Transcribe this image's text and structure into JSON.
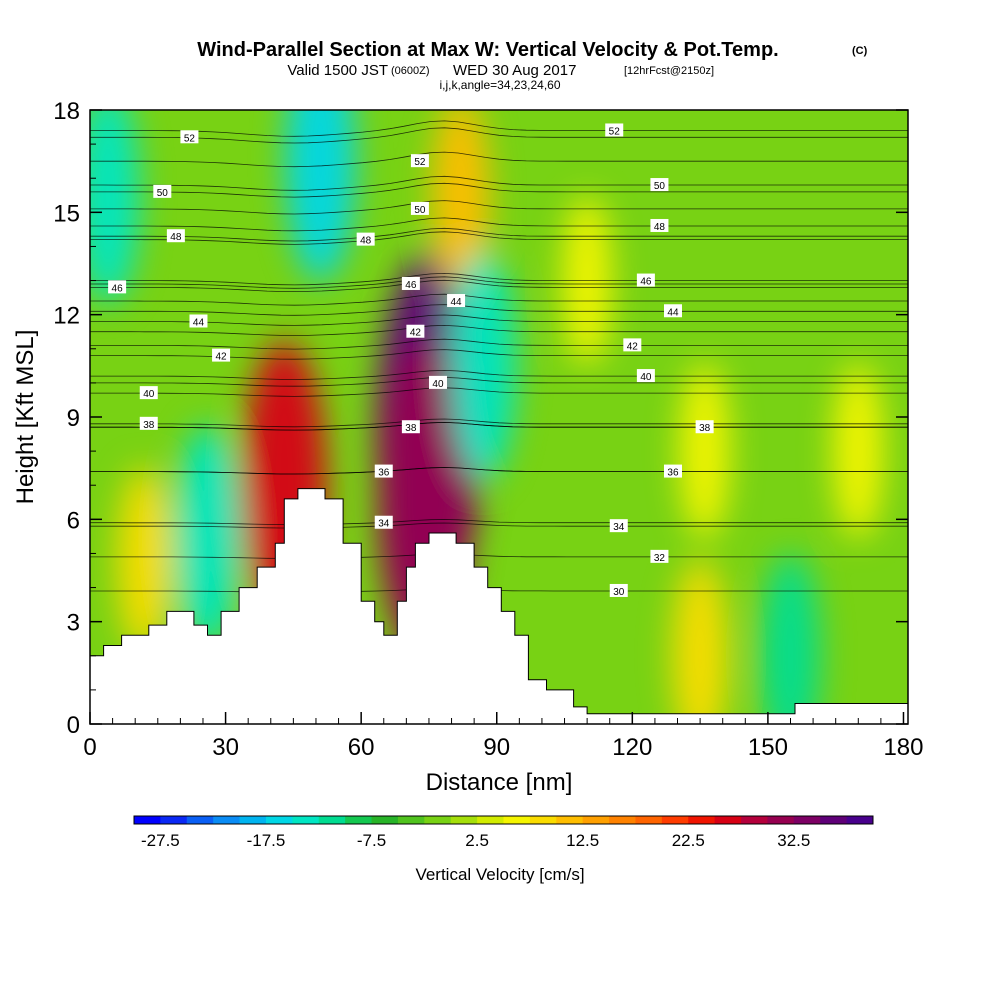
{
  "title": {
    "main": "Wind-Parallel Section at Max W: Vertical Velocity & Pot.Temp.",
    "copyright": "(C)",
    "valid_prefix": "Valid 1500 JST",
    "valid_utc": "(0600Z)",
    "valid_date": "WED 30 Aug 2017",
    "forecast": "[12hrFcst@2150z]",
    "indices": "i,j,k,angle=34,23,24,60"
  },
  "chart_data": {
    "type": "heatmap",
    "x_axis": {
      "label": "Distance [nm]",
      "range": [
        0,
        181
      ],
      "ticks": [
        0,
        30,
        60,
        90,
        120,
        150,
        180
      ]
    },
    "y_axis": {
      "label": "Height [Kft MSL]",
      "range": [
        0,
        18
      ],
      "ticks": [
        0,
        3,
        6,
        9,
        12,
        15,
        18
      ]
    },
    "colorbar": {
      "label": "Vertical Velocity [cm/s]",
      "tick_labels": [
        "-27.5",
        "-17.5",
        "-7.5",
        "2.5",
        "12.5",
        "22.5",
        "32.5"
      ],
      "tick_values": [
        -27.5,
        -17.5,
        -7.5,
        2.5,
        12.5,
        22.5,
        32.5
      ],
      "levels": [
        -30,
        -27.5,
        -25,
        -22.5,
        -20,
        -17.5,
        -15,
        -12.5,
        -10,
        -7.5,
        -5,
        -2.5,
        0,
        2.5,
        5,
        7.5,
        10,
        12.5,
        15,
        17.5,
        20,
        22.5,
        25,
        27.5,
        30,
        32.5,
        35,
        37.5,
        40
      ],
      "colors": [
        "#0000ff",
        "#0a28f5",
        "#0a5ff5",
        "#0a8cf5",
        "#00b4f0",
        "#00d7e6",
        "#00e6c3",
        "#00dc91",
        "#14c850",
        "#28b428",
        "#50c31e",
        "#78d214",
        "#a5df0a",
        "#d2ec00",
        "#f5f500",
        "#fadc00",
        "#ffbe00",
        "#ffa000",
        "#ff8200",
        "#ff6400",
        "#ff3c00",
        "#f01400",
        "#d70014",
        "#b4003c",
        "#960050",
        "#7d0064",
        "#5f0078",
        "#48008c"
      ]
    },
    "shaded_field": "Vertical Velocity [cm/s]",
    "contour_field": "Potential temperature",
    "contour_labels": [
      {
        "x": 22,
        "y": 17.2,
        "text": "52"
      },
      {
        "x": 73,
        "y": 16.5,
        "text": "52"
      },
      {
        "x": 116,
        "y": 17.4,
        "text": "52"
      },
      {
        "x": 16,
        "y": 15.6,
        "text": "50"
      },
      {
        "x": 73,
        "y": 15.1,
        "text": "50"
      },
      {
        "x": 126,
        "y": 15.8,
        "text": "50"
      },
      {
        "x": 19,
        "y": 14.3,
        "text": "48"
      },
      {
        "x": 61,
        "y": 14.2,
        "text": "48"
      },
      {
        "x": 126,
        "y": 14.6,
        "text": "48"
      },
      {
        "x": 6,
        "y": 12.8,
        "text": "46"
      },
      {
        "x": 71,
        "y": 12.9,
        "text": "46"
      },
      {
        "x": 123,
        "y": 13.0,
        "text": "46"
      },
      {
        "x": 81,
        "y": 12.4,
        "text": "44"
      },
      {
        "x": 24,
        "y": 11.8,
        "text": "44"
      },
      {
        "x": 129,
        "y": 12.1,
        "text": "44"
      },
      {
        "x": 72,
        "y": 11.5,
        "text": "42"
      },
      {
        "x": 29,
        "y": 10.8,
        "text": "42"
      },
      {
        "x": 120,
        "y": 11.1,
        "text": "42"
      },
      {
        "x": 77,
        "y": 10.0,
        "text": "40"
      },
      {
        "x": 13,
        "y": 9.7,
        "text": "40"
      },
      {
        "x": 123,
        "y": 10.2,
        "text": "40"
      },
      {
        "x": 13,
        "y": 8.8,
        "text": "38"
      },
      {
        "x": 71,
        "y": 8.7,
        "text": "38"
      },
      {
        "x": 136,
        "y": 8.7,
        "text": "38"
      },
      {
        "x": 65,
        "y": 7.4,
        "text": "36"
      },
      {
        "x": 129,
        "y": 7.4,
        "text": "36"
      },
      {
        "x": 65,
        "y": 5.9,
        "text": "34"
      },
      {
        "x": 117,
        "y": 5.8,
        "text": "34"
      },
      {
        "x": 126,
        "y": 4.9,
        "text": "32"
      },
      {
        "x": 117,
        "y": 3.9,
        "text": "30"
      }
    ],
    "w_peaks": [
      {
        "x": 75,
        "y": 8.5,
        "value": 37
      },
      {
        "x": 74,
        "y": 6.5,
        "value": 30
      },
      {
        "x": 43,
        "y": 7.0,
        "value": 25
      },
      {
        "x": 82,
        "y": 15.5,
        "value": 10
      },
      {
        "x": 51,
        "y": 16.5,
        "value": -17
      },
      {
        "x": 26,
        "y": 5.5,
        "value": -14
      },
      {
        "x": 87,
        "y": 10.5,
        "value": -15
      },
      {
        "x": 4,
        "y": 15.5,
        "value": -13
      },
      {
        "x": 12,
        "y": 4.8,
        "value": 8
      },
      {
        "x": 136,
        "y": 8.0,
        "value": 6
      },
      {
        "x": 170,
        "y": 8.0,
        "value": 6
      },
      {
        "x": 155,
        "y": 2.0,
        "value": -11
      },
      {
        "x": 135,
        "y": 2.0,
        "value": 9
      },
      {
        "x": 110,
        "y": 13.0,
        "value": 5
      }
    ],
    "terrain_profile": {
      "x": [
        0,
        3,
        7,
        13,
        17,
        23,
        26,
        29,
        33,
        37,
        41,
        43,
        46,
        52,
        56,
        59,
        60,
        63,
        65,
        68,
        70,
        72,
        75,
        81,
        85,
        88,
        91,
        94,
        97,
        101,
        107,
        110,
        113,
        120,
        130,
        142,
        152,
        156,
        165,
        175,
        181
      ],
      "height": [
        2.0,
        2.3,
        2.6,
        2.9,
        3.3,
        2.9,
        2.6,
        3.3,
        4.0,
        4.6,
        5.3,
        6.6,
        6.9,
        6.6,
        5.3,
        5.3,
        3.6,
        3.0,
        2.6,
        3.6,
        4.6,
        5.3,
        5.6,
        5.3,
        4.6,
        4.0,
        3.3,
        2.6,
        1.3,
        1.0,
        0.5,
        0.3,
        0.3,
        0.3,
        0.3,
        0.3,
        0.3,
        0.6,
        0.6,
        0.6,
        0.6
      ]
    },
    "grid": false,
    "legend": "colorbar bottom"
  }
}
